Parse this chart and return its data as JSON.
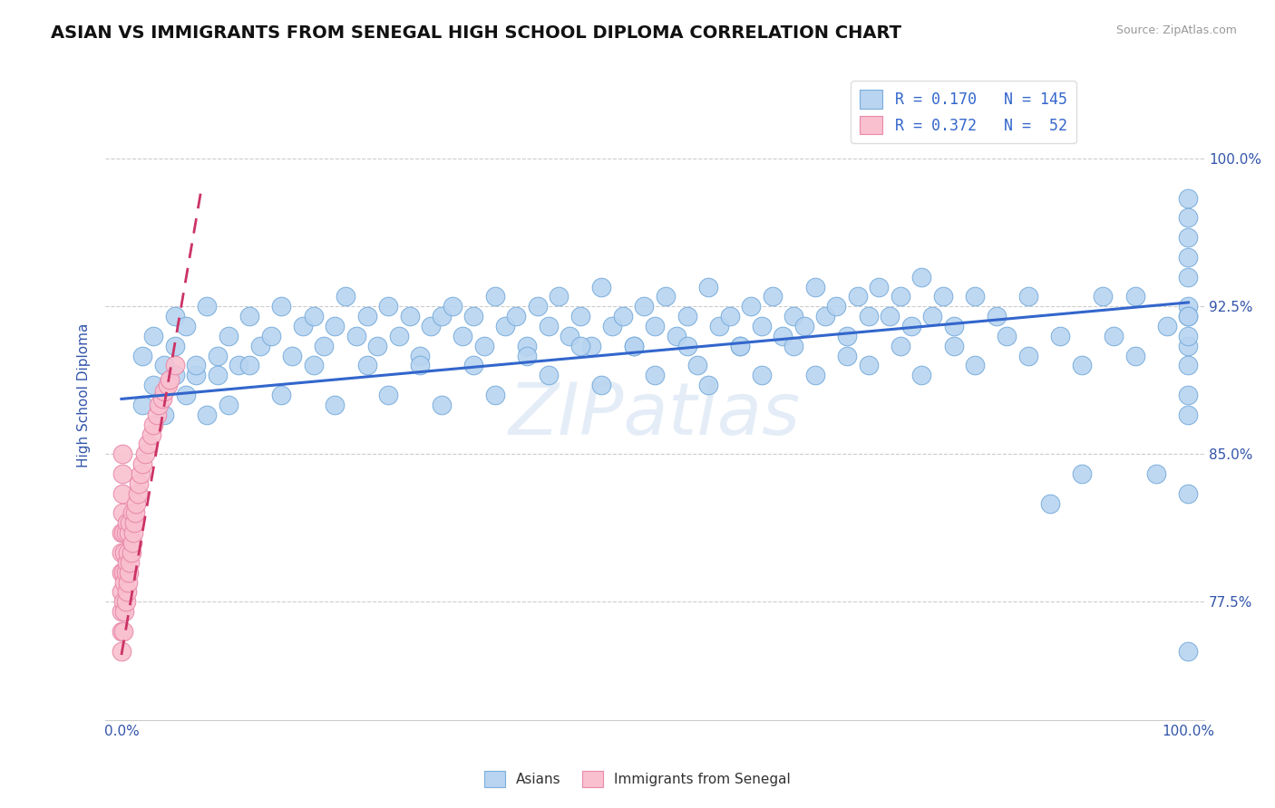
{
  "title": "ASIAN VS IMMIGRANTS FROM SENEGAL HIGH SCHOOL DIPLOMA CORRELATION CHART",
  "source": "Source: ZipAtlas.com",
  "ylabel": "High School Diploma",
  "y_tick_values": [
    0.775,
    0.85,
    0.925,
    1.0
  ],
  "y_tick_labels": [
    "77.5%",
    "85.0%",
    "92.5%",
    "100.0%"
  ],
  "ylim": [
    0.715,
    1.045
  ],
  "xlim": [
    -0.015,
    1.015
  ],
  "blue_scatter_color": "#b8d4f0",
  "blue_scatter_edge": "#7aaedd",
  "pink_scatter_color": "#f9c0d0",
  "pink_scatter_edge": "#e888a8",
  "blue_line_color": "#3366cc",
  "pink_line_color": "#cc3366",
  "pink_line_dash": [
    6,
    4
  ],
  "title_fontsize": 14,
  "source_fontsize": 9,
  "axis_label_color": "#3355aa",
  "tick_label_color": "#3355aa",
  "grid_color": "#cccccc",
  "blue_line_x": [
    0.0,
    1.0
  ],
  "blue_line_y": [
    0.878,
    0.927
  ],
  "pink_line_x": [
    0.0,
    0.075
  ],
  "pink_line_y": [
    0.748,
    0.985
  ],
  "watermark_text": "ZIPatlas",
  "legend_blue_label": "R = 0.170   N = 145",
  "legend_pink_label": "R = 0.372   N =  52",
  "bottom_legend_blue": "Asians",
  "bottom_legend_pink": "Immigrants from Senegal",
  "blue_x": [
    0.02,
    0.03,
    0.04,
    0.05,
    0.05,
    0.06,
    0.07,
    0.08,
    0.09,
    0.1,
    0.11,
    0.12,
    0.13,
    0.14,
    0.15,
    0.16,
    0.17,
    0.18,
    0.19,
    0.2,
    0.21,
    0.22,
    0.23,
    0.24,
    0.25,
    0.26,
    0.27,
    0.28,
    0.29,
    0.3,
    0.31,
    0.32,
    0.33,
    0.34,
    0.35,
    0.36,
    0.37,
    0.38,
    0.39,
    0.4,
    0.41,
    0.42,
    0.43,
    0.44,
    0.45,
    0.46,
    0.47,
    0.48,
    0.49,
    0.5,
    0.51,
    0.52,
    0.53,
    0.54,
    0.55,
    0.56,
    0.57,
    0.58,
    0.59,
    0.6,
    0.61,
    0.62,
    0.63,
    0.64,
    0.65,
    0.66,
    0.67,
    0.68,
    0.69,
    0.7,
    0.71,
    0.72,
    0.73,
    0.74,
    0.75,
    0.76,
    0.77,
    0.78,
    0.8,
    0.82,
    0.85,
    0.87,
    0.9,
    0.92,
    0.95,
    0.97,
    1.0,
    1.0,
    1.0,
    1.0,
    1.0,
    1.0,
    1.0,
    1.0,
    1.0,
    1.0,
    1.0,
    1.0,
    1.0,
    1.0,
    0.02,
    0.03,
    0.04,
    0.05,
    0.06,
    0.07,
    0.08,
    0.09,
    0.1,
    0.12,
    0.15,
    0.18,
    0.2,
    0.23,
    0.25,
    0.28,
    0.3,
    0.33,
    0.35,
    0.38,
    0.4,
    0.43,
    0.45,
    0.48,
    0.5,
    0.53,
    0.55,
    0.58,
    0.6,
    0.63,
    0.65,
    0.68,
    0.7,
    0.73,
    0.75,
    0.78,
    0.8,
    0.83,
    0.85,
    0.88,
    0.9,
    0.93,
    0.95,
    0.98,
    1.0
  ],
  "blue_y": [
    0.9,
    0.91,
    0.895,
    0.92,
    0.905,
    0.915,
    0.89,
    0.925,
    0.9,
    0.91,
    0.895,
    0.92,
    0.905,
    0.91,
    0.925,
    0.9,
    0.915,
    0.92,
    0.905,
    0.915,
    0.93,
    0.91,
    0.92,
    0.905,
    0.925,
    0.91,
    0.92,
    0.9,
    0.915,
    0.92,
    0.925,
    0.91,
    0.92,
    0.905,
    0.93,
    0.915,
    0.92,
    0.905,
    0.925,
    0.915,
    0.93,
    0.91,
    0.92,
    0.905,
    0.935,
    0.915,
    0.92,
    0.905,
    0.925,
    0.915,
    0.93,
    0.91,
    0.92,
    0.895,
    0.935,
    0.915,
    0.92,
    0.905,
    0.925,
    0.915,
    0.93,
    0.91,
    0.92,
    0.915,
    0.935,
    0.92,
    0.925,
    0.91,
    0.93,
    0.92,
    0.935,
    0.92,
    0.93,
    0.915,
    0.94,
    0.92,
    0.93,
    0.915,
    0.93,
    0.92,
    0.93,
    0.825,
    0.84,
    0.93,
    0.93,
    0.84,
    0.75,
    0.83,
    0.87,
    0.905,
    0.925,
    0.94,
    0.95,
    0.96,
    0.97,
    0.98,
    0.88,
    0.895,
    0.91,
    0.92,
    0.875,
    0.885,
    0.87,
    0.89,
    0.88,
    0.895,
    0.87,
    0.89,
    0.875,
    0.895,
    0.88,
    0.895,
    0.875,
    0.895,
    0.88,
    0.895,
    0.875,
    0.895,
    0.88,
    0.9,
    0.89,
    0.905,
    0.885,
    0.905,
    0.89,
    0.905,
    0.885,
    0.905,
    0.89,
    0.905,
    0.89,
    0.9,
    0.895,
    0.905,
    0.89,
    0.905,
    0.895,
    0.91,
    0.9,
    0.91,
    0.895,
    0.91,
    0.9,
    0.915,
    0.92
  ],
  "pink_x": [
    0.0,
    0.0,
    0.0,
    0.0,
    0.0,
    0.0,
    0.0,
    0.001,
    0.001,
    0.001,
    0.001,
    0.002,
    0.002,
    0.002,
    0.002,
    0.003,
    0.003,
    0.003,
    0.004,
    0.004,
    0.004,
    0.005,
    0.005,
    0.005,
    0.006,
    0.006,
    0.007,
    0.007,
    0.008,
    0.008,
    0.009,
    0.01,
    0.01,
    0.011,
    0.012,
    0.013,
    0.014,
    0.015,
    0.016,
    0.018,
    0.02,
    0.022,
    0.025,
    0.028,
    0.03,
    0.033,
    0.035,
    0.038,
    0.04,
    0.043,
    0.045,
    0.05
  ],
  "pink_y": [
    0.75,
    0.76,
    0.77,
    0.78,
    0.79,
    0.8,
    0.81,
    0.82,
    0.83,
    0.84,
    0.85,
    0.76,
    0.775,
    0.79,
    0.81,
    0.77,
    0.785,
    0.8,
    0.775,
    0.79,
    0.81,
    0.78,
    0.795,
    0.815,
    0.785,
    0.8,
    0.79,
    0.81,
    0.795,
    0.815,
    0.8,
    0.805,
    0.82,
    0.81,
    0.815,
    0.82,
    0.825,
    0.83,
    0.835,
    0.84,
    0.845,
    0.85,
    0.855,
    0.86,
    0.865,
    0.87,
    0.875,
    0.878,
    0.882,
    0.885,
    0.888,
    0.895
  ]
}
